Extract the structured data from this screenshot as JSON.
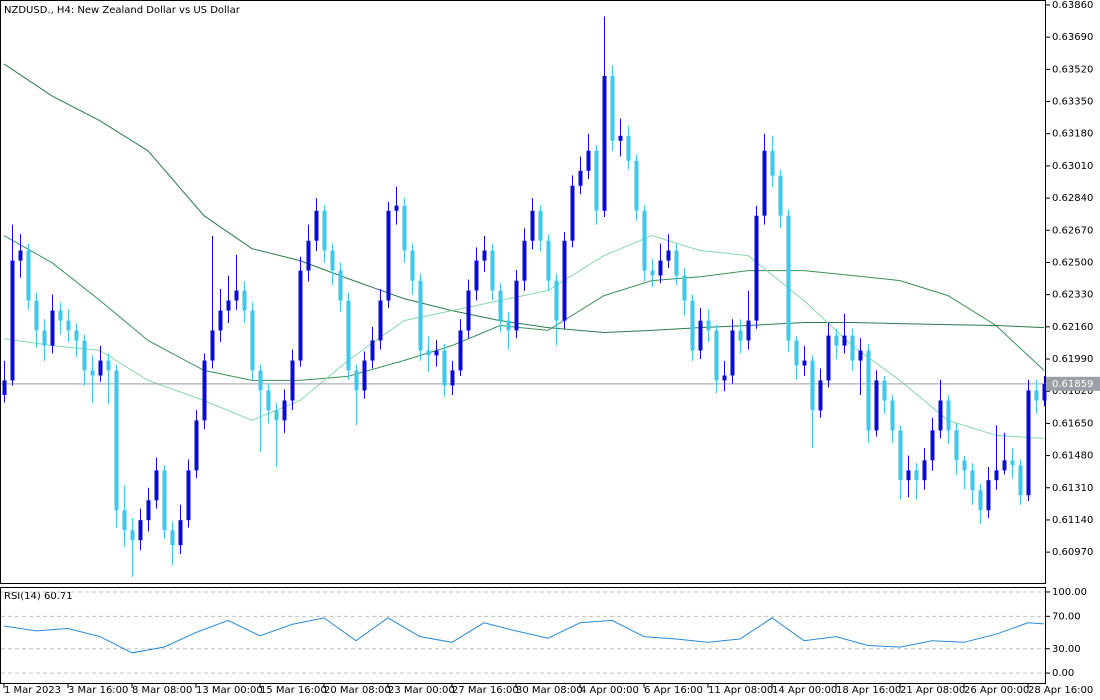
{
  "chart_data": [
    {
      "type": "candlestick",
      "title": "NZDUSD., H4:  New Zealand Dollar vs US Dollar",
      "xlim": [
        -0.5,
        130.25
      ],
      "xticks": [
        {
          "value": 0,
          "label": "1 Mar 2023"
        },
        {
          "value": 8,
          "label": "3 Mar 16:00"
        },
        {
          "value": 16,
          "label": "8 Mar 08:00"
        },
        {
          "value": 24,
          "label": "13 Mar 00:00"
        },
        {
          "value": 32,
          "label": "15 Mar 16:00"
        },
        {
          "value": 40,
          "label": "20 Mar 08:00"
        },
        {
          "value": 48,
          "label": "23 Mar 00:00"
        },
        {
          "value": 56,
          "label": "27 Mar 16:00"
        },
        {
          "value": 64,
          "label": "30 Mar 08:00"
        },
        {
          "value": 72,
          "label": "4 Apr 00:00"
        },
        {
          "value": 80,
          "label": "6 Apr 16:00"
        },
        {
          "value": 88,
          "label": "11 Apr 08:00"
        },
        {
          "value": 96,
          "label": "14 Apr 00:00"
        },
        {
          "value": 104,
          "label": "18 Apr 16:00"
        },
        {
          "value": 112,
          "label": "21 Apr 08:00"
        },
        {
          "value": 120,
          "label": "26 Apr 00:00"
        },
        {
          "value": 128,
          "label": "28 Apr 16:00"
        }
      ],
      "ylim": [
        0.60807,
        0.63881
      ],
      "yticks": [
        {
          "value": 0.6386,
          "label": "0.63860"
        },
        {
          "value": 0.6369,
          "label": "0.63690"
        },
        {
          "value": 0.6352,
          "label": "0.63520"
        },
        {
          "value": 0.6335,
          "label": "0.63350"
        },
        {
          "value": 0.6318,
          "label": "0.63180"
        },
        {
          "value": 0.6301,
          "label": "0.63010"
        },
        {
          "value": 0.6284,
          "label": "0.62840"
        },
        {
          "value": 0.6267,
          "label": "0.62670"
        },
        {
          "value": 0.625,
          "label": "0.62500"
        },
        {
          "value": 0.6233,
          "label": "0.62330"
        },
        {
          "value": 0.6216,
          "label": "0.62160"
        },
        {
          "value": 0.6199,
          "label": "0.61990"
        },
        {
          "value": 0.6182,
          "label": "0.61820"
        },
        {
          "value": 0.6165,
          "label": "0.61650"
        },
        {
          "value": 0.6148,
          "label": "0.61480"
        },
        {
          "value": 0.6131,
          "label": "0.61310"
        },
        {
          "value": 0.6114,
          "label": "0.61140"
        },
        {
          "value": 0.6097,
          "label": "0.60970"
        }
      ],
      "last_price": {
        "value": 0.61859,
        "label": "0.61859"
      },
      "up_color": "#0a0ad2",
      "down_color": "#3cc8ec",
      "candles": [
        [
          0.618,
          0.6198,
          0.6176,
          0.61877
        ],
        [
          0.61877,
          0.627,
          0.6185,
          0.6251
        ],
        [
          0.6251,
          0.6265,
          0.6242,
          0.62563
        ],
        [
          0.62563,
          0.626,
          0.6225,
          0.62299
        ],
        [
          0.62299,
          0.6234,
          0.6205,
          0.62141
        ],
        [
          0.62141,
          0.622,
          0.6198,
          0.62061
        ],
        [
          0.62061,
          0.6233,
          0.6202,
          0.62246
        ],
        [
          0.62246,
          0.6229,
          0.6212,
          0.62193
        ],
        [
          0.62193,
          0.6225,
          0.6208,
          0.62141
        ],
        [
          0.62141,
          0.6218,
          0.62,
          0.62088
        ],
        [
          0.62088,
          0.6212,
          0.6185,
          0.6193
        ],
        [
          0.6193,
          0.6201,
          0.6176,
          0.61903
        ],
        [
          0.61903,
          0.6206,
          0.6187,
          0.61982
        ],
        [
          0.61982,
          0.6202,
          0.6175,
          0.6193
        ],
        [
          0.6193,
          0.6196,
          0.611,
          0.61191
        ],
        [
          0.61191,
          0.6132,
          0.61,
          0.61086
        ],
        [
          0.61086,
          0.6115,
          0.6084,
          0.61033
        ],
        [
          0.61033,
          0.612,
          0.6098,
          0.61139
        ],
        [
          0.61139,
          0.6131,
          0.6108,
          0.61244
        ],
        [
          0.61244,
          0.6147,
          0.612,
          0.61402
        ],
        [
          0.61402,
          0.6143,
          0.6104,
          0.61086
        ],
        [
          0.61086,
          0.6113,
          0.609,
          0.61007
        ],
        [
          0.61007,
          0.6122,
          0.6096,
          0.61139
        ],
        [
          0.61139,
          0.6146,
          0.611,
          0.61402
        ],
        [
          0.61402,
          0.6172,
          0.6136,
          0.61666
        ],
        [
          0.61666,
          0.6202,
          0.6162,
          0.61982
        ],
        [
          0.61982,
          0.6264,
          0.6194,
          0.62141
        ],
        [
          0.62141,
          0.6236,
          0.6208,
          0.62246
        ],
        [
          0.62246,
          0.6243,
          0.6218,
          0.62299
        ],
        [
          0.62299,
          0.6254,
          0.6225,
          0.62352
        ],
        [
          0.62352,
          0.624,
          0.6218,
          0.62246
        ],
        [
          0.62246,
          0.6229,
          0.6188,
          0.6193
        ],
        [
          0.6193,
          0.6196,
          0.615,
          0.61824
        ],
        [
          0.61824,
          0.6186,
          0.6165,
          0.61719
        ],
        [
          0.61719,
          0.6176,
          0.6142,
          0.61666
        ],
        [
          0.61666,
          0.6183,
          0.616,
          0.61771
        ],
        [
          0.61771,
          0.6204,
          0.6172,
          0.61982
        ],
        [
          0.61982,
          0.6253,
          0.6195,
          0.62457
        ],
        [
          0.62457,
          0.627,
          0.624,
          0.62615
        ],
        [
          0.62615,
          0.6284,
          0.6256,
          0.62773
        ],
        [
          0.62773,
          0.628,
          0.625,
          0.62563
        ],
        [
          0.62563,
          0.626,
          0.6238,
          0.62457
        ],
        [
          0.62457,
          0.625,
          0.6224,
          0.62299
        ],
        [
          0.62299,
          0.6234,
          0.6188,
          0.6193
        ],
        [
          0.6193,
          0.6196,
          0.6164,
          0.61824
        ],
        [
          0.61824,
          0.6203,
          0.6178,
          0.61982
        ],
        [
          0.61982,
          0.6216,
          0.6194,
          0.62088
        ],
        [
          0.62088,
          0.6236,
          0.6204,
          0.62299
        ],
        [
          0.62299,
          0.6282,
          0.6226,
          0.62773
        ],
        [
          0.62773,
          0.629,
          0.627,
          0.628
        ],
        [
          0.628,
          0.6284,
          0.625,
          0.62563
        ],
        [
          0.62563,
          0.626,
          0.6233,
          0.62404
        ],
        [
          0.62404,
          0.6244,
          0.6198,
          0.62035
        ],
        [
          0.62035,
          0.6211,
          0.6192,
          0.62009
        ],
        [
          0.62009,
          0.6209,
          0.6195,
          0.62035
        ],
        [
          0.62035,
          0.6207,
          0.6179,
          0.6185
        ],
        [
          0.6185,
          0.6198,
          0.618,
          0.6193
        ],
        [
          0.6193,
          0.622,
          0.619,
          0.62141
        ],
        [
          0.62141,
          0.6241,
          0.621,
          0.62352
        ],
        [
          0.62352,
          0.6258,
          0.623,
          0.6251
        ],
        [
          0.6251,
          0.6264,
          0.6245,
          0.62563
        ],
        [
          0.62563,
          0.626,
          0.623,
          0.62352
        ],
        [
          0.62352,
          0.6239,
          0.6213,
          0.62193
        ],
        [
          0.62193,
          0.6224,
          0.6204,
          0.62141
        ],
        [
          0.62141,
          0.6246,
          0.621,
          0.62404
        ],
        [
          0.62404,
          0.6268,
          0.6235,
          0.62615
        ],
        [
          0.62615,
          0.6284,
          0.6257,
          0.62773
        ],
        [
          0.62773,
          0.628,
          0.6256,
          0.62615
        ],
        [
          0.62615,
          0.6265,
          0.6235,
          0.62404
        ],
        [
          0.62404,
          0.6244,
          0.6206,
          0.62193
        ],
        [
          0.62193,
          0.6266,
          0.6215,
          0.62615
        ],
        [
          0.62615,
          0.6296,
          0.6258,
          0.62905
        ],
        [
          0.62905,
          0.6306,
          0.6286,
          0.62984
        ],
        [
          0.62984,
          0.6318,
          0.6294,
          0.6309
        ],
        [
          0.6309,
          0.6312,
          0.627,
          0.62773
        ],
        [
          0.62773,
          0.638,
          0.6274,
          0.63485
        ],
        [
          0.63485,
          0.6354,
          0.6309,
          0.63143
        ],
        [
          0.63143,
          0.6326,
          0.6306,
          0.63169
        ],
        [
          0.63169,
          0.6322,
          0.6299,
          0.63037
        ],
        [
          0.63037,
          0.6307,
          0.6272,
          0.62773
        ],
        [
          0.62773,
          0.628,
          0.624,
          0.62457
        ],
        [
          0.62457,
          0.6252,
          0.6237,
          0.62431
        ],
        [
          0.62431,
          0.626,
          0.6239,
          0.6251
        ],
        [
          0.6251,
          0.6265,
          0.6247,
          0.62563
        ],
        [
          0.62563,
          0.626,
          0.6238,
          0.62431
        ],
        [
          0.62431,
          0.6247,
          0.6222,
          0.62299
        ],
        [
          0.62299,
          0.6233,
          0.6198,
          0.62035
        ],
        [
          0.62035,
          0.6226,
          0.6199,
          0.62193
        ],
        [
          0.62193,
          0.6225,
          0.6208,
          0.62141
        ],
        [
          0.62141,
          0.6217,
          0.6181,
          0.61877
        ],
        [
          0.61877,
          0.6198,
          0.6182,
          0.61903
        ],
        [
          0.61903,
          0.622,
          0.6186,
          0.62141
        ],
        [
          0.62141,
          0.622,
          0.6202,
          0.62088
        ],
        [
          0.62088,
          0.6235,
          0.6204,
          0.62193
        ],
        [
          0.62193,
          0.628,
          0.6215,
          0.62747
        ],
        [
          0.62747,
          0.6318,
          0.627,
          0.6309
        ],
        [
          0.6309,
          0.6317,
          0.629,
          0.62958
        ],
        [
          0.62958,
          0.6299,
          0.6268,
          0.62747
        ],
        [
          0.62747,
          0.6278,
          0.6203,
          0.62088
        ],
        [
          0.62088,
          0.6211,
          0.6188,
          0.61956
        ],
        [
          0.61956,
          0.6206,
          0.619,
          0.61982
        ],
        [
          0.61982,
          0.6201,
          0.6152,
          0.61719
        ],
        [
          0.61719,
          0.6194,
          0.6168,
          0.61877
        ],
        [
          0.61877,
          0.6218,
          0.6184,
          0.62114
        ],
        [
          0.62114,
          0.6215,
          0.6199,
          0.62061
        ],
        [
          0.62061,
          0.6223,
          0.6202,
          0.62114
        ],
        [
          0.62114,
          0.6215,
          0.6193,
          0.61982
        ],
        [
          0.61982,
          0.621,
          0.618,
          0.62035
        ],
        [
          0.62035,
          0.6207,
          0.6155,
          0.61613
        ],
        [
          0.61613,
          0.6193,
          0.6158,
          0.61877
        ],
        [
          0.61877,
          0.619,
          0.617,
          0.61771
        ],
        [
          0.61771,
          0.618,
          0.6155,
          0.61613
        ],
        [
          0.61613,
          0.6164,
          0.6125,
          0.6135
        ],
        [
          0.6135,
          0.6148,
          0.6126,
          0.61402
        ],
        [
          0.61402,
          0.6144,
          0.6125,
          0.6135
        ],
        [
          0.6135,
          0.6152,
          0.613,
          0.61455
        ],
        [
          0.61455,
          0.6168,
          0.614,
          0.61613
        ],
        [
          0.61613,
          0.6188,
          0.6157,
          0.61771
        ],
        [
          0.61771,
          0.618,
          0.6154,
          0.61613
        ],
        [
          0.61613,
          0.6165,
          0.6138,
          0.61455
        ],
        [
          0.61455,
          0.6148,
          0.613,
          0.61402
        ],
        [
          0.61402,
          0.6144,
          0.6122,
          0.61297
        ],
        [
          0.61297,
          0.6133,
          0.6112,
          0.61191
        ],
        [
          0.61191,
          0.6142,
          0.6115,
          0.6135
        ],
        [
          0.6135,
          0.6164,
          0.613,
          0.61402
        ],
        [
          0.61402,
          0.616,
          0.6138,
          0.61455
        ],
        [
          0.61455,
          0.6152,
          0.6136,
          0.61429
        ],
        [
          0.61429,
          0.6146,
          0.6122,
          0.6127
        ],
        [
          0.6127,
          0.6188,
          0.6124,
          0.61824
        ],
        [
          0.61824,
          0.6188,
          0.617,
          0.61771
        ],
        [
          0.61771,
          0.619,
          0.6174,
          0.61859
        ]
      ],
      "series": [
        {
          "color": "#2f7a4a",
          "x": [
            0,
            6,
            12,
            18,
            25,
            31,
            37,
            43,
            50,
            56,
            62,
            68,
            75,
            81,
            87,
            93,
            100,
            106,
            112,
            118,
            124,
            130
          ],
          "values": [
            0.63549,
            0.6338,
            0.63248,
            0.6309,
            0.62747,
            0.62573,
            0.6251,
            0.62415,
            0.62309,
            0.62246,
            0.62193,
            0.62156,
            0.6213,
            0.62141,
            0.62156,
            0.62167,
            0.62183,
            0.62183,
            0.62177,
            0.62172,
            0.62167,
            0.62156
          ]
        },
        {
          "color": "#3b9158",
          "x": [
            0,
            6,
            12,
            18,
            25,
            31,
            37,
            43,
            50,
            56,
            62,
            68,
            75,
            81,
            87,
            93,
            100,
            106,
            112,
            118,
            124,
            130
          ],
          "values": [
            0.62642,
            0.62499,
            0.62299,
            0.62088,
            0.6193,
            0.61877,
            0.61877,
            0.61898,
            0.61982,
            0.62061,
            0.62167,
            0.62141,
            0.62325,
            0.62404,
            0.62425,
            0.62457,
            0.62457,
            0.62431,
            0.62404,
            0.62325,
            0.62167,
            0.6193
          ]
        },
        {
          "color": "#8ad8a8",
          "x": [
            0,
            6,
            12,
            18,
            25,
            31,
            37,
            43,
            50,
            56,
            62,
            68,
            75,
            81,
            87,
            93,
            100,
            106,
            112,
            118,
            124,
            130
          ],
          "values": [
            0.62098,
            0.62061,
            0.62035,
            0.61877,
            0.61771,
            0.61666,
            0.61771,
            0.61982,
            0.62193,
            0.62246,
            0.62299,
            0.62352,
            0.62536,
            0.62642,
            0.62563,
            0.62536,
            0.62299,
            0.62061,
            0.61877,
            0.61666,
            0.61587,
            0.61571
          ]
        }
      ]
    },
    {
      "type": "line",
      "title": "RSI(14) 60.71",
      "xlim": [
        -0.5,
        130.25
      ],
      "ylim": [
        -12.2,
        104.9
      ],
      "yticks": [
        {
          "value": 100,
          "label": "100.00"
        },
        {
          "value": 70,
          "label": "70.00"
        },
        {
          "value": 30,
          "label": "30.00"
        },
        {
          "value": 0,
          "label": "0.00"
        }
      ],
      "grid": true,
      "series": [
        {
          "color": "#2a8ad8",
          "x": [
            0,
            4,
            8,
            12,
            16,
            20,
            24,
            28,
            32,
            36,
            40,
            44,
            48,
            52,
            56,
            60,
            64,
            68,
            72,
            76,
            80,
            84,
            88,
            92,
            96,
            100,
            104,
            108,
            112,
            116,
            120,
            124,
            128,
            130
          ],
          "values": [
            58,
            52,
            55,
            45,
            25,
            32,
            50,
            65,
            46,
            60,
            68,
            40,
            68,
            45,
            38,
            62,
            52,
            43,
            62,
            65,
            45,
            42,
            38,
            42,
            68,
            40,
            45,
            34,
            32,
            40,
            38,
            48,
            62,
            60.71
          ]
        }
      ]
    }
  ]
}
